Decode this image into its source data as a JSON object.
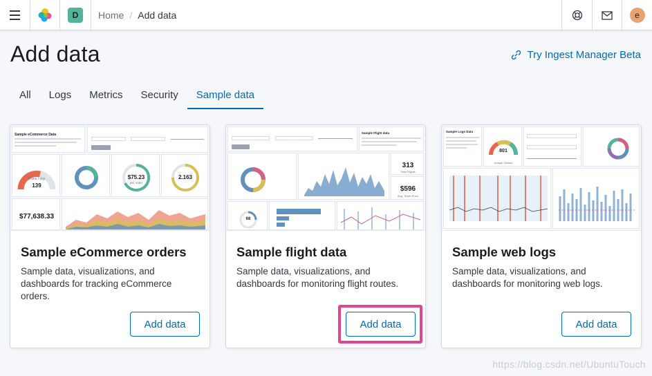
{
  "header": {
    "space_initial": "D",
    "breadcrumbs": [
      "Home",
      "Add data"
    ],
    "user_initial": "e",
    "colors": {
      "space": "#54b399",
      "avatar": "#e7a46f",
      "accent": "#006bb8"
    }
  },
  "page": {
    "title": "Add data",
    "beta_link": "Try Ingest Manager Beta"
  },
  "tabs": [
    {
      "label": "All",
      "active": false
    },
    {
      "label": "Logs",
      "active": false
    },
    {
      "label": "Metrics",
      "active": false
    },
    {
      "label": "Security",
      "active": false
    },
    {
      "label": "Sample data",
      "active": true
    }
  ],
  "cards": [
    {
      "title": "Sample eCommerce orders",
      "description": "Sample data, visualizations, and dashboards for tracking eCommerce orders.",
      "button": "Add data",
      "thumb": {
        "heading": "Sample eCommerce Data",
        "gauge": "139",
        "gauge_sub": "Trans / day",
        "donut_value": "$75.23",
        "donut_sub": "per order",
        "donut2_value": "2.163",
        "total": "$77,638.33"
      }
    },
    {
      "title": "Sample flight data",
      "description": "Sample data, visualizations, and dashboards for monitoring flight routes.",
      "button": "Add data",
      "thumb": {
        "heading": "Sample Flight data",
        "metric1": "313",
        "metric1_sub": "Total Flights",
        "metric2": "$596",
        "metric2_sub": "Avg. Ticket Price",
        "gauge": "68"
      }
    },
    {
      "title": "Sample web logs",
      "description": "Sample data, visualizations, and dashboards for monitoring web logs.",
      "button": "Add data",
      "thumb": {
        "heading": "Sample Logs Data",
        "gauge": "801",
        "gauge_sub": "Unique Visitors"
      }
    }
  ],
  "highlighted_button": "Sample flight data",
  "watermark": "https://blog.csdn.net/UbuntuTouch"
}
